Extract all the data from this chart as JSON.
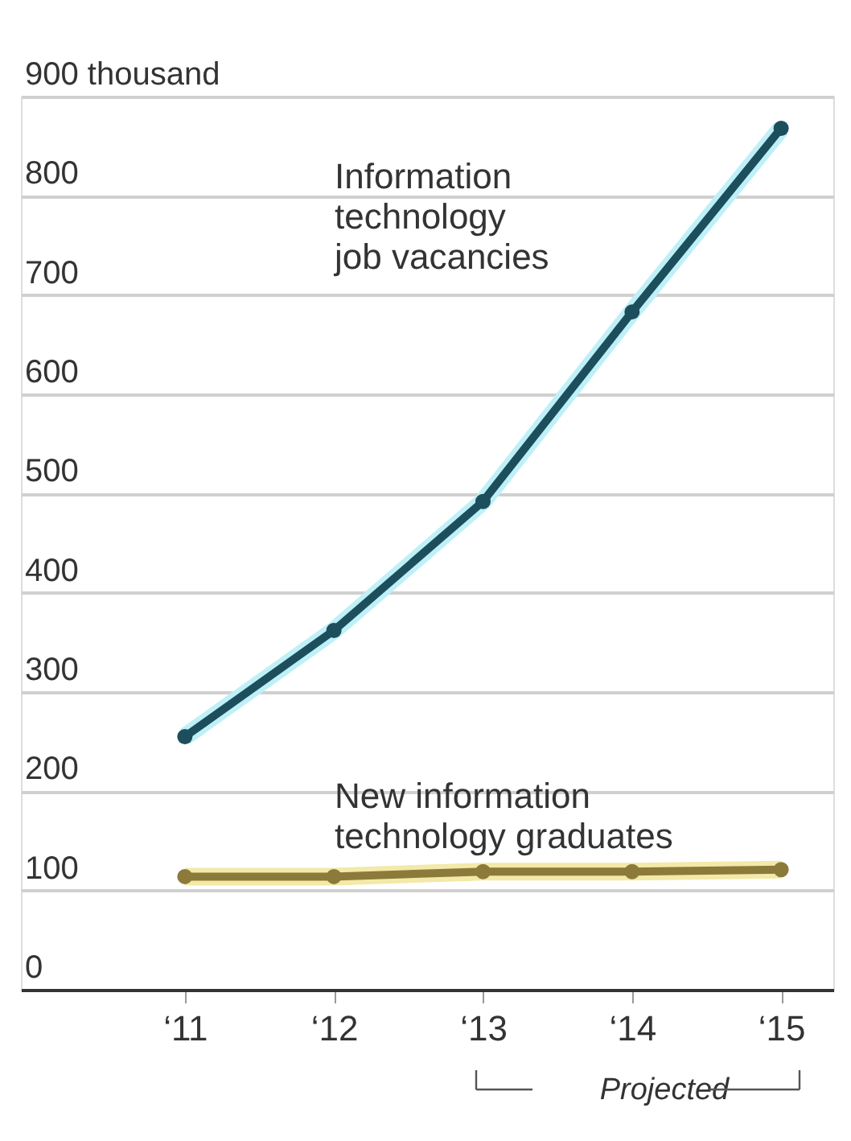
{
  "chart_data": {
    "type": "line",
    "categories": [
      "‘11",
      "‘12",
      "‘13",
      "‘14",
      "‘15"
    ],
    "series": [
      {
        "name": "Information technology job vacancies",
        "color": "#1d4e5c",
        "values": [
          255,
          362,
          492,
          683,
          868
        ]
      },
      {
        "name": "New information technology graduates",
        "color": "#8c7a3a",
        "values": [
          114,
          114,
          119,
          119,
          121
        ]
      }
    ],
    "ylim": [
      0,
      900
    ],
    "yticks": [
      0,
      100,
      200,
      300,
      400,
      500,
      600,
      700,
      800,
      {
        "value": 900,
        "label": "900 thousand"
      }
    ],
    "grid": "y",
    "marker": "circle",
    "line_style": "solid",
    "annotations": [
      "Projected"
    ]
  }
}
